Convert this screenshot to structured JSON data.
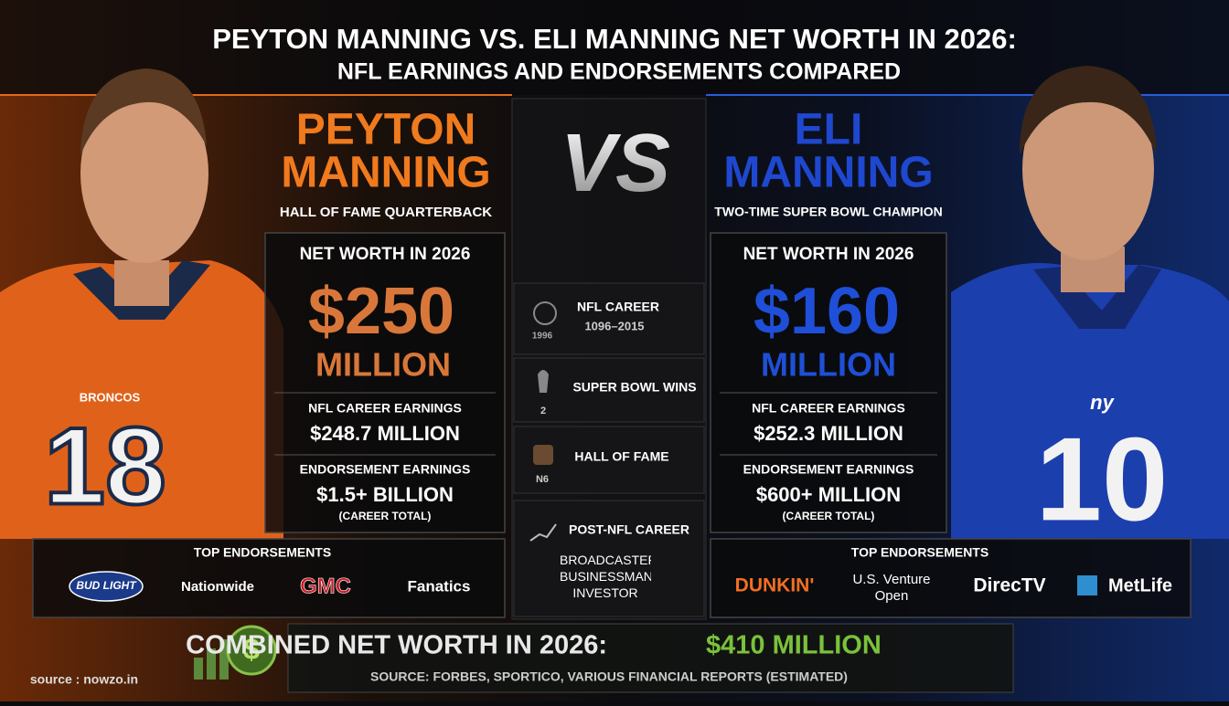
{
  "header": {
    "title": "PEYTON MANNING VS. ELI MANNING NET WORTH IN 2026:",
    "subtitle": "NFL EARNINGS AND ENDORSEMENTS COMPARED"
  },
  "peyton": {
    "first_name": "PEYTON",
    "last_name": "MANNING",
    "tagline": "HALL OF FAME QUARTERBACK",
    "jersey_team": "BRONCOS",
    "jersey_number": "18",
    "net_worth_label": "NET WORTH IN 2026",
    "net_worth": "$250",
    "net_worth_unit": "MILLION",
    "career_label": "NFL CAREER EARNINGS",
    "career_value": "$248.7 MILLION",
    "endorse_label": "ENDORSEMENT EARNINGS",
    "endorse_value": "$1.5+ BILLION",
    "endorse_note": "(CAREER TOTAL)",
    "brands_title": "TOP ENDORSEMENTS",
    "brands": [
      "BUD LIGHT",
      "Nationwide",
      "GMC",
      "Fanatics"
    ]
  },
  "eli": {
    "first_name": "ELI",
    "last_name": "MANNING",
    "tagline": "TWO-TIME SUPER BOWL CHAMPION",
    "jersey_team": "ny",
    "jersey_number": "10",
    "net_worth_label": "NET WORTH IN 2026",
    "net_worth": "$160",
    "net_worth_unit": "MILLION",
    "career_label": "NFL CAREER EARNINGS",
    "career_value": "$252.3 MILLION",
    "endorse_label": "ENDORSEMENT EARNINGS",
    "endorse_value": "$600+ MILLION",
    "endorse_note": "(CAREER TOTAL)",
    "brands_title": "TOP ENDORSEMENTS",
    "brands": [
      "DUNKIN'",
      "U.S. Venture Open",
      "DirecTV",
      "MetLife"
    ]
  },
  "middle": {
    "vs": "VS",
    "rows": [
      {
        "label": "NFL CAREER",
        "detail": "1096–2015",
        "icon_text": "1996"
      },
      {
        "label": "SUPER BOWL WINS",
        "detail": "2"
      },
      {
        "label": "HALL OF FAME",
        "detail": "N6"
      },
      {
        "label": "POST-NFL CAREER",
        "detail": "BROADCASTER, BUSINESSMAN, INVESTOR"
      }
    ]
  },
  "footer": {
    "combined_label": "COMBINED NET WORTH IN 2026:",
    "combined_value": "$410 MILLION",
    "source_note": "SOURCE: FORBES, SPORTICO, VARIOUS FINANCIAL REPORTS (ESTIMATED)",
    "site": "source : nowzo.in"
  }
}
